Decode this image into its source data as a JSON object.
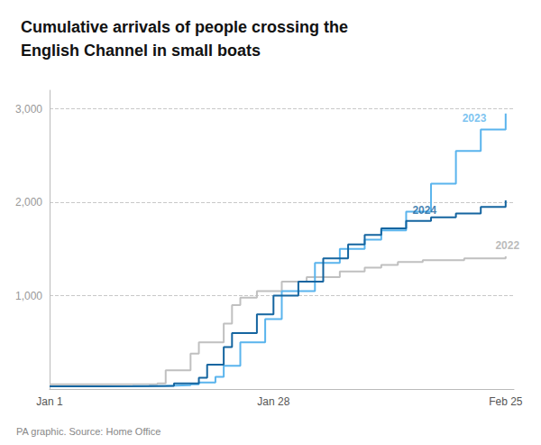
{
  "chart_data": {
    "type": "step",
    "title": "Cumulative arrivals of people crossing the\nEnglish Channel in small boats",
    "source": "PA graphic. Source: Home Office",
    "series": [
      {
        "name": "2022",
        "color": "#c0c0c0",
        "x": [
          0,
          4,
          13,
          14,
          17,
          18,
          21,
          22,
          23,
          25,
          28,
          31,
          35,
          38,
          40,
          42,
          45,
          50,
          55
        ],
        "values": [
          50,
          52,
          60,
          200,
          380,
          500,
          700,
          900,
          980,
          1050,
          1150,
          1200,
          1260,
          1300,
          1330,
          1360,
          1380,
          1400,
          1420
        ]
      },
      {
        "name": "2023",
        "color": "#5ab4ed",
        "x": [
          0,
          5,
          10,
          14,
          17,
          18,
          20,
          21,
          23,
          26,
          28,
          32,
          35,
          38,
          40,
          43,
          46,
          49,
          52,
          55
        ],
        "values": [
          30,
          32,
          35,
          40,
          50,
          70,
          130,
          250,
          500,
          750,
          1050,
          1350,
          1500,
          1600,
          1700,
          1900,
          2200,
          2550,
          2780,
          2950
        ]
      },
      {
        "name": "2024",
        "color": "#1565a0",
        "x": [
          0,
          6,
          12,
          15,
          18,
          19,
          21,
          22,
          25,
          27,
          30,
          33,
          36,
          38,
          40,
          43,
          46,
          49,
          52,
          55
        ],
        "values": [
          30,
          32,
          35,
          60,
          120,
          260,
          450,
          600,
          800,
          1000,
          1150,
          1400,
          1550,
          1650,
          1720,
          1800,
          1840,
          1880,
          1950,
          2020
        ]
      }
    ],
    "annotations": [
      {
        "text": "2022",
        "x": 53,
        "y": 1420,
        "color": "#aaaaaa"
      },
      {
        "text": "2023",
        "x": 49,
        "y": 2780,
        "color": "#5ab4ed"
      },
      {
        "text": "2024",
        "x": 43,
        "y": 1800,
        "color": "#1565a0"
      }
    ],
    "xlim": [
      0,
      56
    ],
    "xticks": [
      {
        "value": 0,
        "label": "Jan 1"
      },
      {
        "value": 27,
        "label": "Jan 28"
      },
      {
        "value": 55,
        "label": "Feb 25"
      }
    ],
    "ylim": [
      0,
      3200
    ],
    "yticks": [
      {
        "value": 1000,
        "label": "1,000"
      },
      {
        "value": 2000,
        "label": "2,000"
      },
      {
        "value": 3000,
        "label": "3,000"
      }
    ],
    "grid": true
  }
}
